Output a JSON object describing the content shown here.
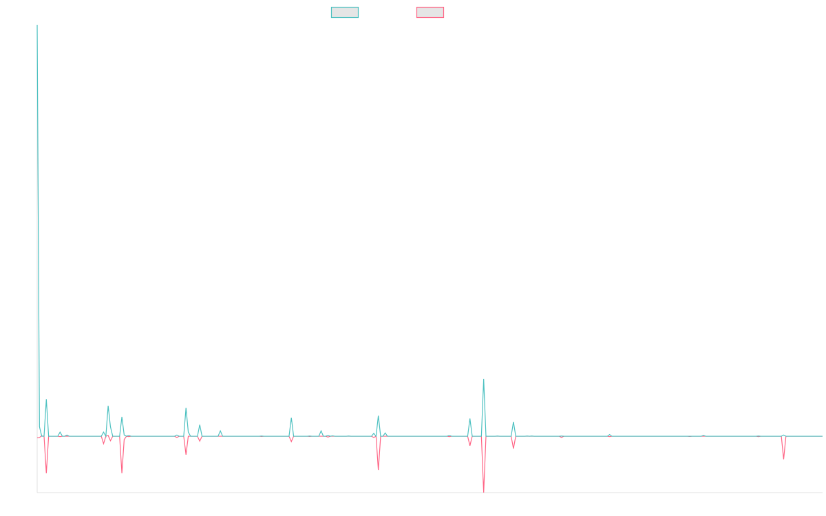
{
  "chart_data": {
    "type": "line",
    "title": "",
    "xlabel": "",
    "ylabel": "",
    "x_range": [
      0,
      343
    ],
    "ylim": [
      -13.7,
      100
    ],
    "grid": false,
    "legend": {
      "placement": "top",
      "entries": [
        "",
        ""
      ]
    },
    "series": [
      {
        "color": "#4bc0c0",
        "points": [
          [
            0,
            100
          ],
          [
            1,
            2.3
          ],
          [
            4,
            9.0
          ],
          [
            10,
            1.0
          ],
          [
            13,
            0.3
          ],
          [
            29,
            1.0
          ],
          [
            31,
            7.4
          ],
          [
            32,
            2.3
          ],
          [
            37,
            4.7
          ],
          [
            38,
            0.3
          ],
          [
            40,
            0.2
          ],
          [
            61,
            0.3
          ],
          [
            65,
            6.9
          ],
          [
            66,
            1.0
          ],
          [
            71,
            2.8
          ],
          [
            80,
            1.3
          ],
          [
            98,
            0.05
          ],
          [
            111,
            4.5
          ],
          [
            119,
            0.05
          ],
          [
            124,
            1.3
          ],
          [
            127,
            0.2
          ],
          [
            129,
            0.1
          ],
          [
            136,
            0.05
          ],
          [
            147,
            0.7
          ],
          [
            149,
            5.0
          ],
          [
            152,
            0.8
          ],
          [
            180,
            0.2
          ],
          [
            189,
            4.3
          ],
          [
            195,
            13.9
          ],
          [
            201,
            0.05
          ],
          [
            208,
            3.5
          ],
          [
            214,
            0.05
          ],
          [
            216,
            0.05
          ],
          [
            229,
            0.05
          ],
          [
            250,
            0.4
          ],
          [
            291,
            0.2
          ],
          [
            315,
            0.05
          ],
          [
            326,
            0.3
          ]
        ]
      },
      {
        "color": "#ff6384",
        "points": [
          [
            0,
            -0.4
          ],
          [
            1,
            -0.3
          ],
          [
            2,
            0.1
          ],
          [
            4,
            -9.0
          ],
          [
            10,
            -0.1
          ],
          [
            29,
            -1.8
          ],
          [
            31,
            0.2
          ],
          [
            32,
            -1.1
          ],
          [
            37,
            -9.0
          ],
          [
            38,
            -0.8
          ],
          [
            40,
            -0.1
          ],
          [
            61,
            -0.3
          ],
          [
            65,
            -4.5
          ],
          [
            71,
            -1.2
          ],
          [
            98,
            -0.05
          ],
          [
            111,
            -1.3
          ],
          [
            119,
            -0.05
          ],
          [
            127,
            -0.2
          ],
          [
            147,
            -0.3
          ],
          [
            149,
            -8.2
          ],
          [
            180,
            -0.1
          ],
          [
            189,
            -2.3
          ],
          [
            195,
            -13.7
          ],
          [
            208,
            -3.0
          ],
          [
            229,
            -0.3
          ],
          [
            250,
            -0.1
          ],
          [
            285,
            -0.05
          ],
          [
            315,
            -0.1
          ],
          [
            326,
            -5.6
          ]
        ]
      }
    ]
  }
}
